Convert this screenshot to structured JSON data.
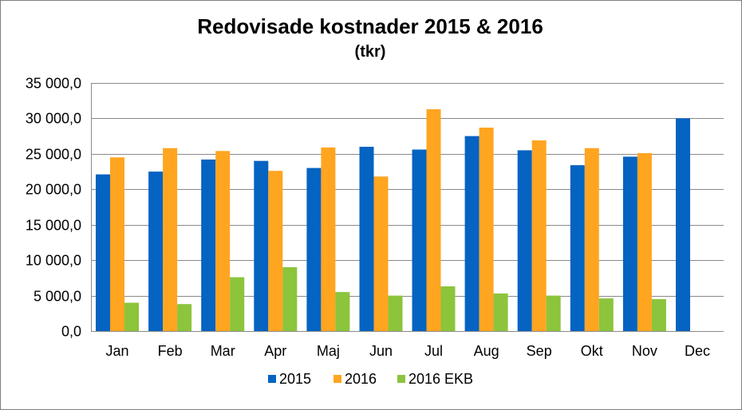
{
  "colors": {
    "s2015": "#0563c1",
    "s2016": "#ffa520",
    "s2016ekb": "#8cc43c",
    "grid": "#8a8a8a",
    "axis": "#8a8a8a"
  },
  "chart_data": {
    "type": "bar",
    "title": "Redovisade kostnader 2015 & 2016",
    "subtitle": "(tkr)",
    "categories": [
      "Jan",
      "Feb",
      "Mar",
      "Apr",
      "Maj",
      "Jun",
      "Jul",
      "Aug",
      "Sep",
      "Okt",
      "Nov",
      "Dec"
    ],
    "series": [
      {
        "name": "2015",
        "color": "#0563c1",
        "values": [
          22100,
          22500,
          24200,
          24000,
          23000,
          26000,
          25600,
          27500,
          25500,
          23400,
          24600,
          30000
        ]
      },
      {
        "name": "2016",
        "color": "#ffa520",
        "values": [
          24500,
          25800,
          25400,
          22600,
          25900,
          21800,
          31300,
          28700,
          26900,
          25800,
          25100,
          null
        ]
      },
      {
        "name": "2016 EKB",
        "color": "#8cc43c",
        "values": [
          4000,
          3800,
          7600,
          9000,
          5500,
          5000,
          6300,
          5300,
          5000,
          4600,
          4500,
          null
        ]
      }
    ],
    "ylim": [
      0,
      35000
    ],
    "yticks": [
      0,
      5000,
      10000,
      15000,
      20000,
      25000,
      30000,
      35000
    ],
    "ytick_labels": [
      "0,0",
      "5 000,0",
      "10 000,0",
      "15 000,0",
      "20 000,0",
      "25 000,0",
      "30 000,0",
      "35 000,0"
    ],
    "grid": true,
    "legend": "bottom"
  }
}
